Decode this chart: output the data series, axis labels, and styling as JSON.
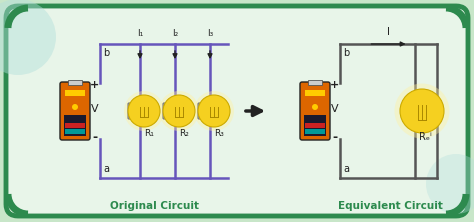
{
  "bg_color": "#e8f5e9",
  "outer_bg": "#c8e6c9",
  "border_color": "#2d8a4e",
  "wire_left_color": "#6655bb",
  "wire_right_color": "#555555",
  "label_color_green": "#2d8a4e",
  "label_color_black": "#222222",
  "title_left": "Original Circuit",
  "title_right": "Equivalent Circuit",
  "figsize": [
    4.74,
    2.22
  ],
  "dpi": 100,
  "plus_label": "+",
  "minus_label": "-",
  "b_label": "b",
  "a_label": "a",
  "v_label": "V",
  "r1_label": "R₁",
  "r2_label": "R₂",
  "r3_label": "R₃",
  "req_label": "Rₑⁱ",
  "i1_label": "I₁",
  "i2_label": "I₂",
  "i3_label": "I₃",
  "i_label": "I"
}
